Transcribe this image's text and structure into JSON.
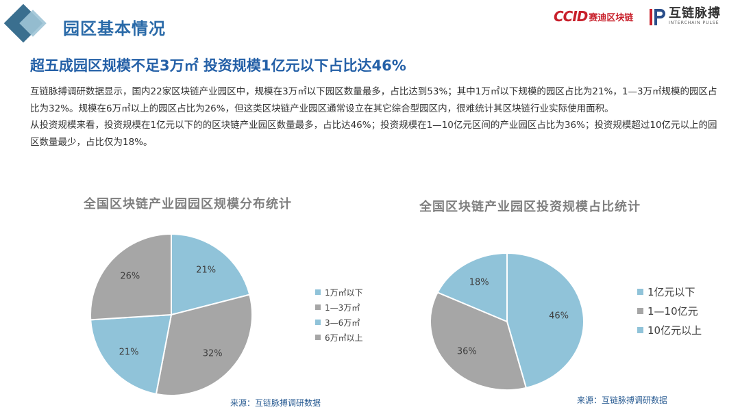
{
  "header": {
    "title": "园区基本情况"
  },
  "logos": {
    "ccid_mark": "CCID",
    "ccid_cn": "赛迪区块链",
    "interchain_cn": "互链脉搏",
    "interchain_en": "INTERCHAIN PULSE"
  },
  "headline": "超五成园区规模不足3万㎡ 投资规模1亿元以下占比达46%",
  "paragraphs": [
    "互链脉搏调研数据显示，国内22家区块链产业园区中，规模在3万㎡以下园区数量最多，占比达到53%；其中1万㎡以下规模的园区占比为21%，1—3万㎡规模的园区占比为32%。规模在6万㎡以上的园区占比为26%，但这类区块链产业园区通常设立在其它综合型园区内，很难统计其区块链行业实际使用面积。",
    "从投资规模来看，投资规模在1亿元以下的的区块链产业园区数量最多，占比达46%；投资规模在1—10亿元区间的产业园区占比为36%；投资规模超过10亿元以上的园区数量最少，占比仅为18%。"
  ],
  "chart_data": [
    {
      "type": "pie",
      "title": "全国区块链产业园园区规模分布统计",
      "categories": [
        "1万㎡以下",
        "1—3万㎡",
        "3—6万㎡",
        "6万㎡以上"
      ],
      "values": [
        21,
        32,
        21,
        26
      ],
      "labels": [
        "21%",
        "32%",
        "21%",
        "26%"
      ],
      "colors": [
        "#90c3d9",
        "#a6a6a6",
        "#90c3d9",
        "#a6a6a6"
      ],
      "legend": "right",
      "source": "来源：互链脉搏调研数据"
    },
    {
      "type": "pie",
      "title": "全国区块链产业园区投资规模占比统计",
      "categories": [
        "1亿元以下",
        "1—10亿元",
        "10亿元以上"
      ],
      "values": [
        46,
        36,
        18
      ],
      "labels": [
        "46%",
        "36%",
        "18%"
      ],
      "colors": [
        "#90c3d9",
        "#a6a6a6",
        "#90c3d9"
      ],
      "legend": "right",
      "source": "来源：互链脉搏调研数据"
    }
  ]
}
